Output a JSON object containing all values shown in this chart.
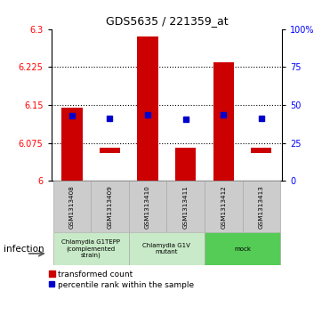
{
  "title": "GDS5635 / 221359_at",
  "samples": [
    "GSM1313408",
    "GSM1313409",
    "GSM1313410",
    "GSM1313411",
    "GSM1313412",
    "GSM1313413"
  ],
  "bar_low": [
    6.0,
    6.055,
    6.0,
    6.0,
    6.0,
    6.055
  ],
  "bar_high": [
    6.145,
    6.065,
    6.285,
    6.065,
    6.235,
    6.065
  ],
  "percentile_val": [
    6.128,
    6.123,
    6.13,
    6.122,
    6.131,
    6.123
  ],
  "ylim": [
    6.0,
    6.3
  ],
  "yticks_left": [
    6.0,
    6.075,
    6.15,
    6.225,
    6.3
  ],
  "yticks_left_labels": [
    "6",
    "6.075",
    "6.15",
    "6.225",
    "6.3"
  ],
  "yticks_right_vals": [
    0,
    25,
    50,
    75,
    100
  ],
  "yticks_right_labels": [
    "0",
    "25",
    "50",
    "75",
    "100%"
  ],
  "bar_color": "#cc0000",
  "percentile_color": "#0000cc",
  "group_info": [
    {
      "start": 0,
      "end": 1,
      "label": "Chlamydia G1TEPP\n(complemented\nstrain)",
      "color": "#c8eac8"
    },
    {
      "start": 2,
      "end": 3,
      "label": "Chlamydia G1V\nmutant",
      "color": "#c8eac8"
    },
    {
      "start": 4,
      "end": 5,
      "label": "mock",
      "color": "#55cc55"
    }
  ],
  "factor_label": "infection",
  "legend_items": [
    "transformed count",
    "percentile rank within the sample"
  ]
}
